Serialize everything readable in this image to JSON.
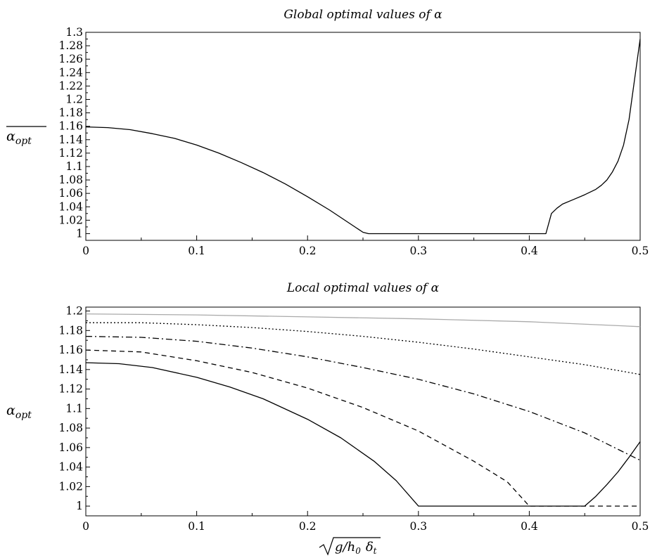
{
  "chart_data": [
    {
      "type": "line",
      "title": "Global optimal values of α",
      "ylabel": "αopt",
      "ylabel_overline": true,
      "xlabel": "",
      "xlim": [
        0,
        0.5
      ],
      "ylim": [
        0.99,
        1.3
      ],
      "xticks": [
        0,
        0.1,
        0.2,
        0.3,
        0.4,
        0.5
      ],
      "xtick_labels": [
        "0",
        "0.1",
        "0.2",
        "0.3",
        "0.4",
        "0.5"
      ],
      "yticks": [
        1,
        1.02,
        1.04,
        1.06,
        1.08,
        1.1,
        1.12,
        1.14,
        1.16,
        1.18,
        1.2,
        1.22,
        1.24,
        1.26,
        1.28,
        1.3
      ],
      "ytick_labels": [
        "1",
        "1.02",
        "1.04",
        "1.06",
        "1.08",
        "1.1",
        "1.12",
        "1.14",
        "1.16",
        "1.18",
        "1.2",
        "1.22",
        "1.24",
        "1.26",
        "1.28",
        "1.3"
      ],
      "grid": false,
      "series": [
        {
          "style": "solid",
          "color": "#000000",
          "x": [
            0,
            0.02,
            0.04,
            0.06,
            0.08,
            0.1,
            0.12,
            0.14,
            0.16,
            0.18,
            0.2,
            0.22,
            0.24,
            0.25,
            0.255,
            0.3,
            0.35,
            0.4,
            0.415,
            0.42,
            0.425,
            0.43,
            0.44,
            0.45,
            0.46,
            0.465,
            0.47,
            0.475,
            0.48,
            0.485,
            0.49,
            0.495,
            0.5
          ],
          "y": [
            1.159,
            1.158,
            1.155,
            1.149,
            1.142,
            1.132,
            1.12,
            1.106,
            1.091,
            1.074,
            1.055,
            1.035,
            1.013,
            1.002,
            1.0,
            1.0,
            1.0,
            1.0,
            1.0,
            1.03,
            1.038,
            1.044,
            1.051,
            1.058,
            1.066,
            1.072,
            1.08,
            1.092,
            1.108,
            1.132,
            1.17,
            1.23,
            1.29
          ]
        }
      ]
    },
    {
      "type": "line",
      "title": "Local optimal values of α",
      "ylabel": "αopt",
      "ylabel_overline": false,
      "xlabel": "√(g/h0) δt",
      "xlabel_parts": {
        "sqrt": "g/h",
        "sub0": "0",
        "delta": "δ",
        "subt": "t"
      },
      "xlim": [
        0,
        0.5
      ],
      "ylim": [
        0.99,
        1.204
      ],
      "xticks": [
        0,
        0.1,
        0.2,
        0.3,
        0.4,
        0.5
      ],
      "xtick_labels": [
        "0",
        "0.1",
        "0.2",
        "0.3",
        "0.4",
        "0.5"
      ],
      "yticks": [
        1,
        1.02,
        1.04,
        1.06,
        1.08,
        1.1,
        1.12,
        1.14,
        1.16,
        1.18,
        1.2
      ],
      "ytick_labels": [
        "1",
        "1.02",
        "1.04",
        "1.06",
        "1.08",
        "1.1",
        "1.12",
        "1.14",
        "1.16",
        "1.18",
        "1.2"
      ],
      "grid": false,
      "series": [
        {
          "style": "solid",
          "color": "#aaaaaa",
          "x": [
            0,
            0.1,
            0.2,
            0.3,
            0.4,
            0.5
          ],
          "y": [
            1.197,
            1.196,
            1.194,
            1.192,
            1.189,
            1.184
          ]
        },
        {
          "style": "dotted",
          "color": "#000000",
          "x": [
            0,
            0.05,
            0.1,
            0.15,
            0.2,
            0.25,
            0.3,
            0.35,
            0.4,
            0.45,
            0.5
          ],
          "y": [
            1.188,
            1.188,
            1.186,
            1.183,
            1.179,
            1.174,
            1.168,
            1.161,
            1.153,
            1.145,
            1.135
          ]
        },
        {
          "style": "dashdot",
          "color": "#000000",
          "x": [
            0,
            0.05,
            0.1,
            0.15,
            0.2,
            0.25,
            0.3,
            0.35,
            0.4,
            0.45,
            0.5
          ],
          "y": [
            1.174,
            1.173,
            1.169,
            1.162,
            1.153,
            1.142,
            1.13,
            1.115,
            1.097,
            1.075,
            1.047
          ]
        },
        {
          "style": "dashed",
          "color": "#000000",
          "x": [
            0,
            0.05,
            0.1,
            0.15,
            0.2,
            0.25,
            0.3,
            0.35,
            0.38,
            0.4,
            0.45,
            0.5
          ],
          "y": [
            1.16,
            1.158,
            1.149,
            1.137,
            1.121,
            1.101,
            1.077,
            1.046,
            1.025,
            1.0,
            1.0,
            1.0
          ]
        },
        {
          "style": "solid",
          "color": "#000000",
          "x": [
            0,
            0.03,
            0.06,
            0.1,
            0.13,
            0.16,
            0.2,
            0.23,
            0.26,
            0.28,
            0.3,
            0.31,
            0.35,
            0.4,
            0.45,
            0.46,
            0.47,
            0.48,
            0.49,
            0.5
          ],
          "y": [
            1.147,
            1.146,
            1.142,
            1.132,
            1.122,
            1.11,
            1.089,
            1.07,
            1.046,
            1.026,
            1.0,
            1.0,
            1.0,
            1.0,
            1.0,
            1.01,
            1.022,
            1.035,
            1.05,
            1.066
          ]
        }
      ]
    }
  ]
}
